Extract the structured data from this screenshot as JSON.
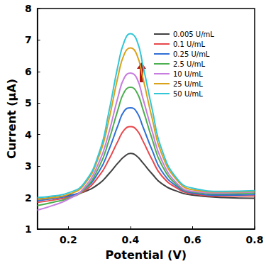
{
  "chart_data": {
    "type": "line",
    "x_label": "Potential (V)",
    "y_label": "Current (μA)",
    "x": [
      0.1,
      0.15,
      0.2,
      0.25,
      0.3,
      0.33,
      0.36,
      0.38,
      0.4,
      0.42,
      0.44,
      0.47,
      0.5,
      0.55,
      0.6,
      0.7,
      0.8
    ],
    "series": [
      {
        "name": "0.005 U/mL",
        "color": "#404040",
        "values": [
          1.95,
          2.0,
          2.07,
          2.18,
          2.45,
          2.75,
          3.1,
          3.3,
          3.4,
          3.32,
          3.1,
          2.75,
          2.45,
          2.2,
          2.08,
          2.0,
          1.98
        ]
      },
      {
        "name": "0.1 U/mL",
        "color": "#e8474b",
        "values": [
          1.85,
          1.92,
          2.02,
          2.2,
          2.7,
          3.2,
          3.8,
          4.15,
          4.25,
          4.15,
          3.8,
          3.2,
          2.7,
          2.3,
          2.12,
          2.05,
          2.05
        ]
      },
      {
        "name": "0.25 U/mL",
        "color": "#2f6fd6",
        "values": [
          1.9,
          1.97,
          2.05,
          2.25,
          2.85,
          3.5,
          4.3,
          4.75,
          4.85,
          4.72,
          4.25,
          3.5,
          2.85,
          2.35,
          2.15,
          2.08,
          2.1
        ]
      },
      {
        "name": "2.5 U/mL",
        "color": "#4caf50",
        "values": [
          1.75,
          1.85,
          1.98,
          2.25,
          3.0,
          3.8,
          4.8,
          5.35,
          5.5,
          5.35,
          4.8,
          3.85,
          3.05,
          2.4,
          2.18,
          2.12,
          2.15
        ]
      },
      {
        "name": "10 U/mL",
        "color": "#c77ddf",
        "values": [
          1.6,
          1.75,
          1.95,
          2.3,
          3.15,
          4.05,
          5.2,
          5.8,
          5.95,
          5.8,
          5.15,
          4.1,
          3.2,
          2.45,
          2.2,
          2.15,
          2.18
        ]
      },
      {
        "name": "25 U/mL",
        "color": "#d9a21b",
        "values": [
          1.95,
          2.0,
          2.1,
          2.4,
          3.35,
          4.45,
          5.85,
          6.55,
          6.75,
          6.55,
          5.8,
          4.5,
          3.4,
          2.55,
          2.25,
          2.18,
          2.2
        ]
      },
      {
        "name": "50 U/mL",
        "color": "#33c6d6",
        "values": [
          2.0,
          2.05,
          2.15,
          2.45,
          3.45,
          4.7,
          6.2,
          6.95,
          7.2,
          7.0,
          6.2,
          4.8,
          3.55,
          2.6,
          2.3,
          2.2,
          2.22
        ]
      }
    ],
    "xlim": [
      0.1,
      0.8
    ],
    "xticks": [
      0.2,
      0.4,
      0.6,
      0.8
    ],
    "ylim": [
      1,
      8
    ],
    "yticks": [
      1,
      2,
      3,
      4,
      5,
      6,
      7,
      8
    ],
    "legend": "upper right",
    "grid": false
  }
}
